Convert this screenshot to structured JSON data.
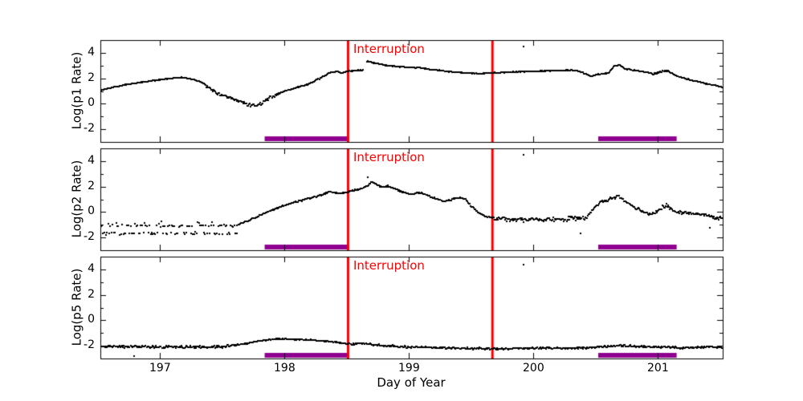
{
  "figure": {
    "background": "#ffffff",
    "frame_color": "#000000"
  },
  "chart_data": {
    "type": "scatter",
    "title": "",
    "xlabel": "Day of Year",
    "xlim": [
      196.52,
      201.52
    ],
    "x_ticks": [
      197,
      198,
      199,
      200,
      201
    ],
    "ylim": [
      -3,
      5
    ],
    "y_ticks": [
      -2,
      0,
      2,
      4
    ],
    "y_minor_ticks": [
      -1,
      1,
      3
    ],
    "marker_color": "#000000",
    "legend": "none",
    "grid": false,
    "interruption": {
      "label": "Interruption",
      "color": "#ff0000",
      "lines_x": [
        198.51,
        199.67
      ],
      "linewidth": 3
    },
    "bars": {
      "color": "#900090",
      "y": -2.75,
      "thickness_px": 6,
      "segments": [
        [
          197.84,
          198.52
        ],
        [
          200.52,
          201.15
        ]
      ]
    },
    "panels": [
      {
        "ylabel": "Log(p1 Rate)",
        "noise": 0.04,
        "noise_regions": [
          [
            197.36,
            197.95,
            0.15
          ],
          [
            200.95,
            201.12,
            0.09
          ]
        ],
        "gaps": [
          [
            198.635,
            198.655
          ]
        ],
        "outliers": [
          [
            199.92,
            4.5
          ]
        ],
        "anchors": [
          [
            196.52,
            1.05
          ],
          [
            196.62,
            1.3
          ],
          [
            196.72,
            1.5
          ],
          [
            196.82,
            1.63
          ],
          [
            196.92,
            1.78
          ],
          [
            197.02,
            1.92
          ],
          [
            197.1,
            2.0
          ],
          [
            197.18,
            2.05
          ],
          [
            197.24,
            1.97
          ],
          [
            197.3,
            1.82
          ],
          [
            197.36,
            1.55
          ],
          [
            197.42,
            1.05
          ],
          [
            197.5,
            0.65
          ],
          [
            197.58,
            0.35
          ],
          [
            197.66,
            0.1
          ],
          [
            197.72,
            -0.08
          ],
          [
            197.78,
            -0.12
          ],
          [
            197.82,
            0.1
          ],
          [
            197.88,
            0.45
          ],
          [
            197.95,
            0.8
          ],
          [
            198.02,
            1.05
          ],
          [
            198.1,
            1.28
          ],
          [
            198.18,
            1.5
          ],
          [
            198.24,
            1.75
          ],
          [
            198.3,
            2.1
          ],
          [
            198.37,
            2.45
          ],
          [
            198.42,
            2.55
          ],
          [
            198.46,
            2.4
          ],
          [
            198.5,
            2.55
          ],
          [
            198.56,
            2.6
          ],
          [
            198.63,
            2.62
          ],
          [
            198.66,
            3.35
          ],
          [
            198.7,
            3.25
          ],
          [
            198.78,
            3.08
          ],
          [
            198.9,
            2.92
          ],
          [
            199.0,
            2.85
          ],
          [
            199.08,
            2.85
          ],
          [
            199.16,
            2.72
          ],
          [
            199.26,
            2.6
          ],
          [
            199.36,
            2.5
          ],
          [
            199.46,
            2.42
          ],
          [
            199.56,
            2.36
          ],
          [
            199.67,
            2.42
          ],
          [
            199.8,
            2.48
          ],
          [
            200.0,
            2.55
          ],
          [
            200.2,
            2.6
          ],
          [
            200.32,
            2.62
          ],
          [
            200.4,
            2.45
          ],
          [
            200.46,
            2.15
          ],
          [
            200.52,
            2.32
          ],
          [
            200.6,
            2.4
          ],
          [
            200.65,
            2.95
          ],
          [
            200.69,
            3.05
          ],
          [
            200.74,
            2.72
          ],
          [
            200.82,
            2.62
          ],
          [
            200.9,
            2.5
          ],
          [
            200.96,
            2.35
          ],
          [
            201.02,
            2.5
          ],
          [
            201.07,
            2.6
          ],
          [
            201.12,
            2.35
          ],
          [
            201.17,
            2.1
          ],
          [
            201.27,
            1.85
          ],
          [
            201.37,
            1.62
          ],
          [
            201.47,
            1.42
          ],
          [
            201.52,
            1.3
          ]
        ]
      },
      {
        "ylabel": "Log(p2 Rate)",
        "noise": 0.06,
        "noise_regions": [
          [
            199.68,
            200.44,
            0.22
          ],
          [
            200.44,
            201.52,
            0.16
          ]
        ],
        "gaps": [],
        "outliers": [
          [
            198.67,
            2.75
          ],
          [
            199.92,
            4.5
          ],
          [
            200.38,
            -1.65
          ],
          [
            201.42,
            -1.25
          ]
        ],
        "band": {
          "until": 197.62,
          "levels": [
            -1.08,
            -1.68
          ],
          "high": -0.85,
          "p_high": 0.07,
          "jitter": 0.12,
          "step": 0.0095
        },
        "anchors": [
          [
            197.62,
            -1.0
          ],
          [
            197.7,
            -0.72
          ],
          [
            197.78,
            -0.38
          ],
          [
            197.86,
            -0.02
          ],
          [
            197.94,
            0.3
          ],
          [
            198.02,
            0.6
          ],
          [
            198.12,
            0.88
          ],
          [
            198.22,
            1.12
          ],
          [
            198.3,
            1.35
          ],
          [
            198.36,
            1.62
          ],
          [
            198.41,
            1.5
          ],
          [
            198.46,
            1.45
          ],
          [
            198.51,
            1.6
          ],
          [
            198.56,
            1.7
          ],
          [
            198.62,
            1.85
          ],
          [
            198.67,
            2.1
          ],
          [
            198.7,
            2.4
          ],
          [
            198.74,
            2.15
          ],
          [
            198.78,
            1.95
          ],
          [
            198.83,
            2.05
          ],
          [
            198.9,
            1.75
          ],
          [
            198.97,
            1.5
          ],
          [
            199.02,
            1.4
          ],
          [
            199.07,
            1.52
          ],
          [
            199.12,
            1.45
          ],
          [
            199.18,
            1.15
          ],
          [
            199.24,
            1.0
          ],
          [
            199.28,
            0.82
          ],
          [
            199.33,
            0.95
          ],
          [
            199.4,
            1.15
          ],
          [
            199.45,
            1.05
          ],
          [
            199.5,
            0.45
          ],
          [
            199.56,
            -0.05
          ],
          [
            199.62,
            -0.38
          ],
          [
            199.7,
            -0.52
          ],
          [
            199.85,
            -0.58
          ],
          [
            200.05,
            -0.62
          ],
          [
            200.25,
            -0.55
          ],
          [
            200.42,
            -0.48
          ],
          [
            200.48,
            0.2
          ],
          [
            200.54,
            0.8
          ],
          [
            200.6,
            0.95
          ],
          [
            200.65,
            1.12
          ],
          [
            200.68,
            1.3
          ],
          [
            200.73,
            0.85
          ],
          [
            200.8,
            0.45
          ],
          [
            200.87,
            0.12
          ],
          [
            200.93,
            -0.2
          ],
          [
            200.98,
            -0.05
          ],
          [
            201.03,
            0.35
          ],
          [
            201.07,
            0.55
          ],
          [
            201.12,
            0.1
          ],
          [
            201.18,
            -0.05
          ],
          [
            201.28,
            -0.12
          ],
          [
            201.38,
            -0.22
          ],
          [
            201.46,
            -0.42
          ],
          [
            201.52,
            -0.55
          ]
        ]
      },
      {
        "ylabel": "Log(p5 Rate)",
        "noise": 0.09,
        "noise_regions": [
          [
            196.52,
            197.6,
            0.12
          ],
          [
            197.6,
            198.45,
            0.05
          ]
        ],
        "gaps": [],
        "outliers": [
          [
            196.79,
            -2.8
          ],
          [
            199.92,
            4.4
          ]
        ],
        "anchors": [
          [
            196.52,
            -2.05
          ],
          [
            196.9,
            -2.08
          ],
          [
            197.2,
            -2.1
          ],
          [
            197.45,
            -2.08
          ],
          [
            197.58,
            -2.0
          ],
          [
            197.68,
            -1.85
          ],
          [
            197.78,
            -1.65
          ],
          [
            197.88,
            -1.52
          ],
          [
            197.96,
            -1.45
          ],
          [
            198.08,
            -1.5
          ],
          [
            198.2,
            -1.55
          ],
          [
            198.35,
            -1.65
          ],
          [
            198.48,
            -1.8
          ],
          [
            198.54,
            -1.85
          ],
          [
            198.6,
            -1.8
          ],
          [
            198.68,
            -1.88
          ],
          [
            198.8,
            -2.0
          ],
          [
            199.0,
            -2.1
          ],
          [
            199.2,
            -2.15
          ],
          [
            199.45,
            -2.2
          ],
          [
            199.7,
            -2.25
          ],
          [
            199.9,
            -2.2
          ],
          [
            200.1,
            -2.18
          ],
          [
            200.3,
            -2.2
          ],
          [
            200.5,
            -2.12
          ],
          [
            200.68,
            -2.0
          ],
          [
            200.85,
            -2.05
          ],
          [
            201.0,
            -2.1
          ],
          [
            201.2,
            -2.15
          ],
          [
            201.35,
            -2.1
          ],
          [
            201.52,
            -2.1
          ]
        ]
      }
    ]
  }
}
